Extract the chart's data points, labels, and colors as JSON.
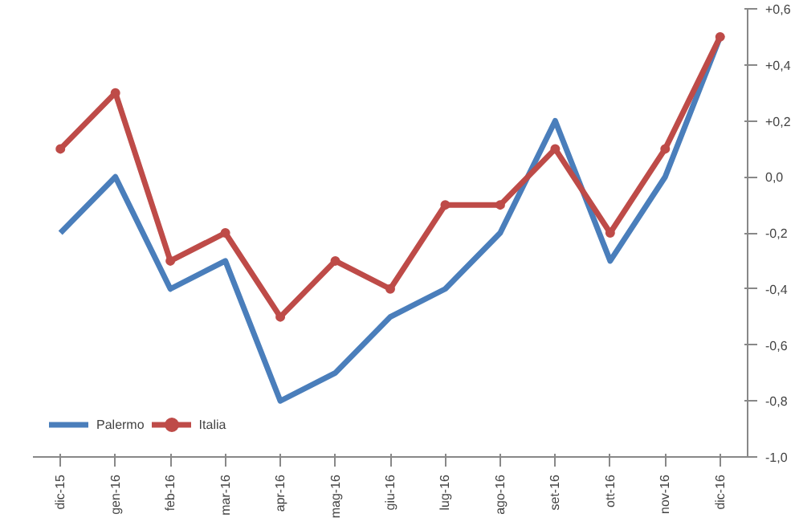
{
  "chart_data": {
    "type": "line",
    "categories": [
      "dic-15",
      "gen-16",
      "feb-16",
      "mar-16",
      "apr-16",
      "mag-16",
      "giu-16",
      "lug-16",
      "ago-16",
      "set-16",
      "ott-16",
      "nov-16",
      "dic-16"
    ],
    "series": [
      {
        "name": "Palermo",
        "color": "#4a7ebb",
        "marker": "none",
        "values": [
          -0.2,
          0.0,
          -0.4,
          -0.3,
          -0.8,
          -0.7,
          -0.5,
          -0.4,
          -0.2,
          0.2,
          -0.3,
          0.0,
          0.5
        ]
      },
      {
        "name": "Italia",
        "color": "#be4b48",
        "marker": "circle",
        "values": [
          0.1,
          0.3,
          -0.3,
          -0.2,
          -0.5,
          -0.3,
          -0.4,
          -0.1,
          -0.1,
          0.1,
          -0.2,
          0.1,
          0.5
        ]
      }
    ],
    "ylim": [
      -1.0,
      0.6
    ],
    "yticks": [
      {
        "value": 0.6,
        "label": "+0,6"
      },
      {
        "value": 0.4,
        "label": "+0,4"
      },
      {
        "value": 0.2,
        "label": "+0,2"
      },
      {
        "value": 0.0,
        "label": "0,0"
      },
      {
        "value": -0.2,
        "label": "-0,2"
      },
      {
        "value": -0.4,
        "label": "-0,4"
      },
      {
        "value": -0.6,
        "label": "-0,6"
      },
      {
        "value": -0.8,
        "label": "-0,8"
      },
      {
        "value": -1.0,
        "label": "-1,0"
      }
    ],
    "grid": false,
    "legend": "bottom left",
    "line_style": "solid"
  }
}
